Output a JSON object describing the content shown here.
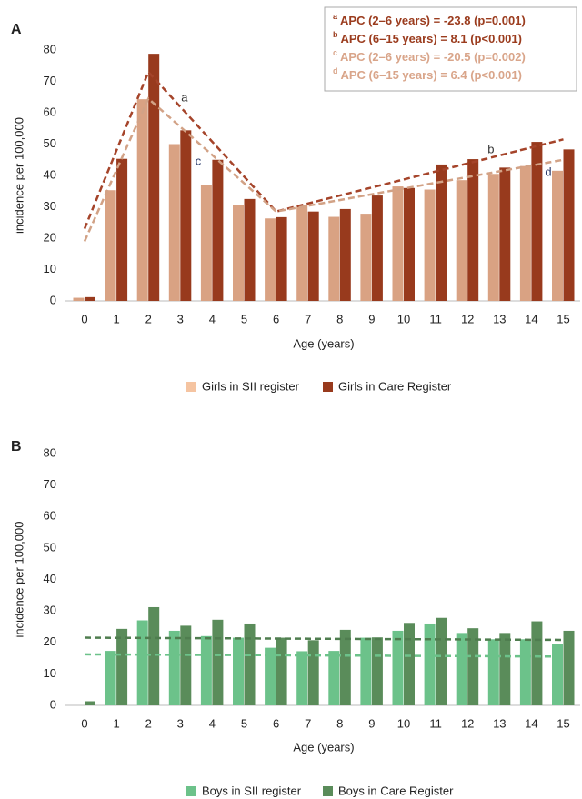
{
  "chart_data": [
    {
      "type": "bar",
      "panel": "A",
      "ylabel": "incidence per 100,000",
      "xlabel": "Age (years)",
      "categories": [
        "0",
        "1",
        "2",
        "3",
        "4",
        "5",
        "6",
        "7",
        "8",
        "9",
        "10",
        "11",
        "12",
        "13",
        "14",
        "15"
      ],
      "ylim": [
        0,
        80
      ],
      "yticks": [
        0,
        10,
        20,
        30,
        40,
        50,
        60,
        70,
        80
      ],
      "series": [
        {
          "name": "Girls in SII register",
          "color": "#d9a283",
          "legend_color": "#f5c4a1",
          "values": [
            1,
            35.3,
            64.3,
            50,
            37,
            30.5,
            26.3,
            30.5,
            26.8,
            27.8,
            36.5,
            35.5,
            38.5,
            40.5,
            43,
            41.5
          ]
        },
        {
          "name": "Girls in Care Register",
          "color": "#983a1d",
          "values": [
            1.2,
            45.3,
            78.8,
            54.4,
            45,
            32.5,
            26.7,
            28.5,
            29.3,
            33.6,
            36,
            43.5,
            45.2,
            42.5,
            50.7,
            48.3
          ]
        }
      ],
      "trends": [
        {
          "color": "#a5442a",
          "x": [
            0,
            2,
            6,
            15
          ],
          "values": [
            23,
            73,
            28.5,
            51.5
          ]
        },
        {
          "color": "#d2a286",
          "x": [
            0,
            2,
            6,
            15
          ],
          "values": [
            19,
            64.5,
            28.5,
            45
          ]
        }
      ],
      "annotations": [
        {
          "text": "a",
          "x": 3.13,
          "y": 64.6,
          "color": "#333333"
        },
        {
          "text": "c",
          "x": 3.56,
          "y": 44.3,
          "color": "#2a3a6a"
        },
        {
          "text": "b",
          "x": 12.73,
          "y": 48.1,
          "color": "#333333"
        },
        {
          "text": "d",
          "x": 14.53,
          "y": 40.9,
          "color": "#2a3a6a"
        }
      ],
      "notes": [
        {
          "mark": "a",
          "text": "APC (2–6 years) = -23.8 (p=0.001)",
          "color": "#9b3c1e"
        },
        {
          "mark": "b",
          "text": "APC (6–15 years) = 8.1 (p<0.001)",
          "color": "#9b3c1e"
        },
        {
          "mark": "c",
          "text": "APC (2–6 years) = -20.5 (p=0.002)",
          "color": "#d9a58a"
        },
        {
          "mark": "d",
          "text": "APC (6–15 years) = 6.4 (p<0.001)",
          "color": "#d9a58a"
        }
      ]
    },
    {
      "type": "bar",
      "panel": "B",
      "ylabel": "incidence per 100,000",
      "xlabel": "Age (years)",
      "categories": [
        "0",
        "1",
        "2",
        "3",
        "4",
        "5",
        "6",
        "7",
        "8",
        "9",
        "10",
        "11",
        "12",
        "13",
        "14",
        "15"
      ],
      "ylim": [
        0,
        80
      ],
      "yticks": [
        0,
        10,
        20,
        30,
        40,
        50,
        60,
        70,
        80
      ],
      "series": [
        {
          "name": "Boys in SII register",
          "color": "#6cc28a",
          "values": [
            0,
            17.3,
            27,
            23.7,
            22,
            21.5,
            18.3,
            17.2,
            17.3,
            21.5,
            23.7,
            26,
            23,
            21,
            21,
            19.5
          ]
        },
        {
          "name": "Boys in Care Register",
          "color": "#5a8c5a",
          "values": [
            1.3,
            24.3,
            31.2,
            25.3,
            27.2,
            26,
            21.5,
            20.7,
            24,
            21.6,
            26.2,
            27.8,
            24.5,
            23,
            26.7,
            23.7
          ]
        }
      ],
      "trends": [
        {
          "color": "#4f7d4f",
          "x": [
            0,
            15
          ],
          "values": [
            21.5,
            20.8
          ]
        },
        {
          "color": "#6cc28a",
          "x": [
            0,
            15
          ],
          "values": [
            16.2,
            15.5
          ]
        }
      ]
    }
  ]
}
